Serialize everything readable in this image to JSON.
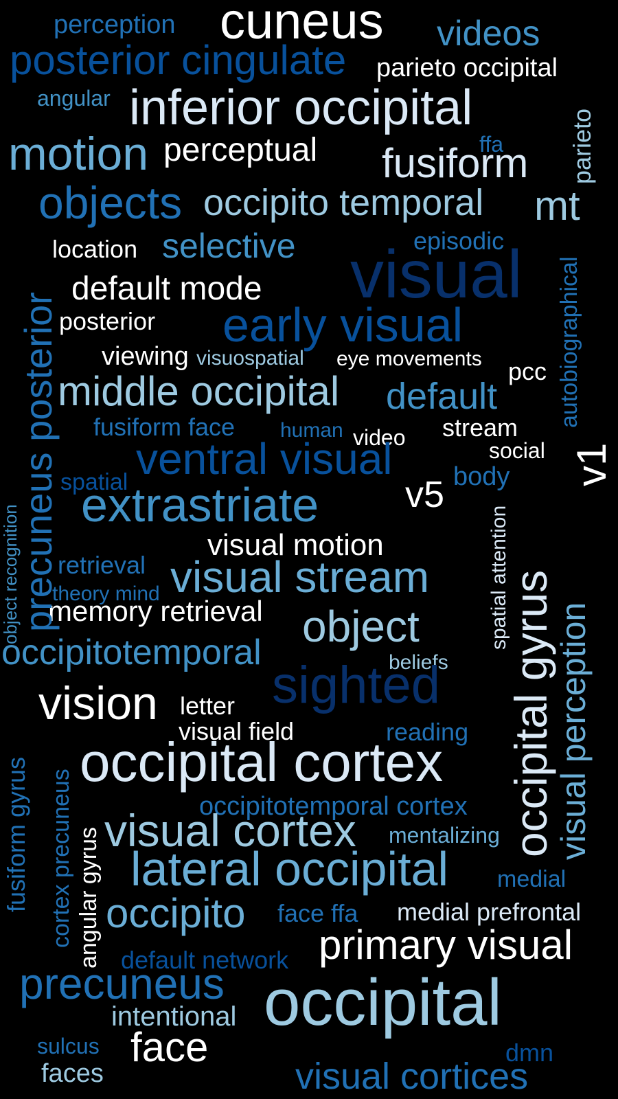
{
  "words": [
    "cuneus",
    "perception",
    "videos",
    "posterior cingulate",
    "parieto occipital",
    "angular",
    "inferior occipital",
    "parieto",
    "motion",
    "perceptual",
    "ffa",
    "fusiform",
    "objects",
    "occipito temporal",
    "mt",
    "location",
    "selective",
    "episodic",
    "visual",
    "autobiographical",
    "default mode",
    "posterior",
    "early visual",
    "viewing",
    "visuospatial",
    "eye movements",
    "pcc",
    "middle occipital",
    "default",
    "fusiform face",
    "human",
    "video",
    "stream",
    "social",
    "v1",
    "ventral visual",
    "spatial",
    "body",
    "extrastriate",
    "v5",
    "precuneus posterior",
    "object recognition",
    "visual motion",
    "retrieval",
    "visual stream",
    "spatial attention",
    "occipital gyrus",
    "theory mind",
    "memory retrieval",
    "object",
    "visual perception",
    "occipitotemporal",
    "beliefs",
    "sighted",
    "vision",
    "letter",
    "visual field",
    "reading",
    "occipital cortex",
    "fusiform gyrus",
    "cortex precuneus",
    "angular gyrus",
    "occipitotemporal cortex",
    "visual cortex",
    "mentalizing",
    "lateral occipital",
    "medial",
    "occipito",
    "face ffa",
    "medial prefrontal",
    "default network",
    "primary visual",
    "precuneus",
    "occipital",
    "intentional",
    "sulcus",
    "face",
    "dmn",
    "faces",
    "visual cortices"
  ]
}
